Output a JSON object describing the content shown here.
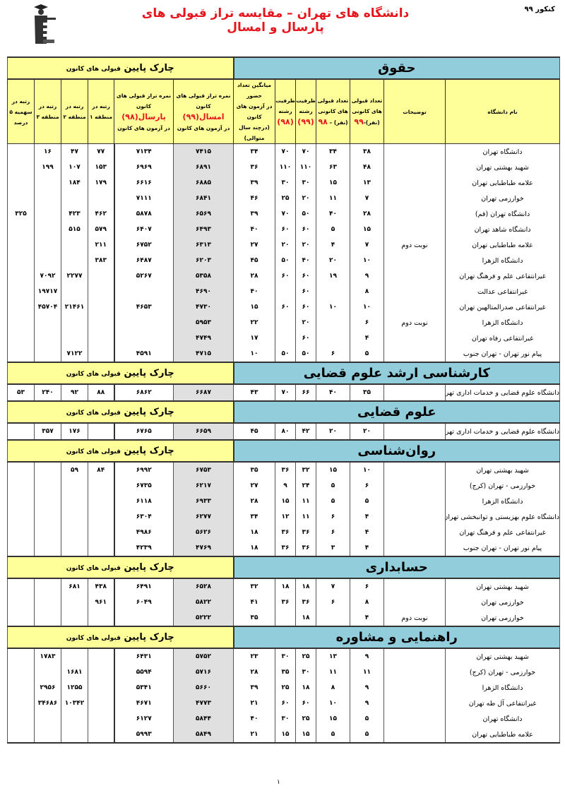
{
  "header": {
    "exam_label": "کنکور ۹۹",
    "title": "دانشگاه های تهران – مقایسه تراز قبولی های پارسال و امسال",
    "logo_text": "کانون فرهنگی آموزش"
  },
  "colors": {
    "title": "#e8141b",
    "section_bg": "#92cddc",
    "side_bg": "#ffff99",
    "score_col_bg": "#e0e0e0"
  },
  "side_label_big": "چارک پایین",
  "side_label_small": "قبولی های کانون",
  "columns": {
    "name": "نام دانشگاه",
    "notes": "توضیحات",
    "acc99": [
      "تعداد قبولی",
      "های کانونی",
      "(نفر)-",
      "۹۹"
    ],
    "acc98": [
      "تعداد قبولی",
      "های کانونی",
      "(نفر) – ",
      "۹۸"
    ],
    "cap99": [
      "ظرفیت",
      "رشته",
      "(۹۹)"
    ],
    "cap98": [
      "ظرفیت",
      "رشته",
      "(۹۸)"
    ],
    "avg": [
      "میانگین تعداد حضور",
      "در آزمون های کانون",
      "(درچند سال متوالی)"
    ],
    "score99": [
      "نمره تراز قبولی های کانون",
      "امسال(۹۹)",
      "در آزمون های کانون"
    ],
    "score98": [
      "نمره تراز قبولی های کانون",
      "پارسال(۹۸)",
      "در آزمون های کانون"
    ],
    "r1": [
      "رتبه در",
      "منطقه ۱"
    ],
    "r2": [
      "رتبه در",
      "منطقه ۲"
    ],
    "r3": [
      "رتبه در",
      "منطقه ۳"
    ],
    "quota": [
      "رتبه در",
      "سهمیه ۵",
      "درصد"
    ]
  },
  "sections": [
    {
      "title": "حقوق",
      "rows": [
        {
          "name": "دانشگاه تهران",
          "notes": "",
          "acc99": "۳۸",
          "acc98": "۳۴",
          "cap99": "۷۰",
          "cap98": "۷۰",
          "avg": "۳۴",
          "score99": "۷۴۱۵",
          "score98": "۷۱۳۴",
          "r1": "۷۷",
          "r2": "۴۷",
          "r3": "۱۶",
          "quota": ""
        },
        {
          "name": "شهید بهشتی تهران",
          "notes": "",
          "acc99": "۴۸",
          "acc98": "۶۳",
          "cap99": "۱۱۰",
          "cap98": "۱۱۰",
          "avg": "۳۶",
          "score99": "۶۸۹۱",
          "score98": "۶۹۶۹",
          "r1": "۱۵۳",
          "r2": "۱۰۷",
          "r3": "۱۹۹",
          "quota": ""
        },
        {
          "name": "علامه طباطبایی تهران",
          "notes": "",
          "acc99": "۱۳",
          "acc98": "۱۵",
          "cap99": "۳۰",
          "cap98": "۳۰",
          "avg": "۳۹",
          "score99": "۶۸۸۵",
          "score98": "۶۶۱۶",
          "r1": "۱۷۹",
          "r2": "۱۸۴",
          "r3": "",
          "quota": ""
        },
        {
          "name": "خوارزمی تهران",
          "notes": "",
          "acc99": "۷",
          "acc98": "۱۱",
          "cap99": "۲۰",
          "cap98": "۲۵",
          "avg": "۴۶",
          "score99": "۶۸۴۱",
          "score98": "۷۱۱۱",
          "r1": "",
          "r2": "",
          "r3": "",
          "quota": ""
        },
        {
          "name": "دانشگاه تهران (قم)",
          "notes": "",
          "acc99": "۲۸",
          "acc98": "۴۰",
          "cap99": "۵۰",
          "cap98": "۷۰",
          "avg": "۳۹",
          "score99": "۶۵۶۹",
          "score98": "۵۸۷۸",
          "r1": "۴۶۲",
          "r2": "۴۲۳",
          "r3": "",
          "quota": "۳۲۵"
        },
        {
          "name": "دانشگاه شاهد تهران",
          "notes": "",
          "acc99": "۱۵",
          "acc98": "۵",
          "cap99": "۶۰",
          "cap98": "۶۰",
          "avg": "۴۰",
          "score99": "۶۴۹۳",
          "score98": "۶۴۰۷",
          "r1": "۵۷۹",
          "r2": "۵۱۵",
          "r3": "",
          "quota": ""
        },
        {
          "name": "علامه طباطبایی تهران",
          "notes": "نوبت دوم",
          "acc99": "۷",
          "acc98": "۴",
          "cap99": "۲۰",
          "cap98": "۲۰",
          "avg": "۲۷",
          "score99": "۶۳۱۳",
          "score98": "۶۷۵۲",
          "r1": "۲۱۱",
          "r2": "",
          "r3": "",
          "quota": ""
        },
        {
          "name": "دانشگاه الزهرا",
          "notes": "",
          "acc99": "۱۰",
          "acc98": "۲۰",
          "cap99": "۴۰",
          "cap98": "۵۰",
          "avg": "۴۵",
          "score99": "۶۲۰۳",
          "score98": "۶۴۸۷",
          "r1": "۳۸۳",
          "r2": "",
          "r3": "",
          "quota": ""
        },
        {
          "name": "غیرانتفاعی علم و فرهنگ تهران",
          "notes": "",
          "acc99": "۹",
          "acc98": "۱۹",
          "cap99": "۶۰",
          "cap98": "۶۰",
          "avg": "۲۸",
          "score99": "۵۳۵۸",
          "score98": "۵۲۶۷",
          "r1": "",
          "r2": "۲۲۷۷",
          "r3": "۷۰۹۲",
          "quota": ""
        },
        {
          "name": "غیرانتفاعی عدالت",
          "notes": "",
          "acc99": "۸",
          "acc98": "",
          "cap99": "۶۰",
          "cap98": "",
          "avg": "۴۰",
          "score99": "۴۶۹۰",
          "score98": "",
          "r1": "",
          "r2": "",
          "r3": "۱۹۷۱۷",
          "quota": ""
        },
        {
          "name": "غیرانتفاعی صدرالمتالهین تهران",
          "notes": "",
          "acc99": "۱۰",
          "acc98": "۱۰",
          "cap99": "۶۰",
          "cap98": "۶۰",
          "avg": "۱۵",
          "score99": "۴۷۳۰",
          "score98": "۴۶۵۳",
          "r1": "",
          "r2": "۲۱۴۶۱",
          "r3": "۴۵۷۰۴",
          "quota": ""
        },
        {
          "name": "دانشگاه الزهرا",
          "notes": "نوبت دوم",
          "acc99": "۶",
          "acc98": "",
          "cap99": "۲۰",
          "cap98": "",
          "avg": "۲۲",
          "score99": "۵۹۵۳",
          "score98": "",
          "r1": "",
          "r2": "",
          "r3": "",
          "quota": ""
        },
        {
          "name": "غیرانتفاعی رفاه تهران",
          "notes": "",
          "acc99": "۴",
          "acc98": "",
          "cap99": "۶۰",
          "cap98": "",
          "avg": "۱۷",
          "score99": "۴۷۴۹",
          "score98": "",
          "r1": "",
          "r2": "",
          "r3": "",
          "quota": ""
        },
        {
          "name": "پیام نور تهران - تهران جنوب",
          "notes": "",
          "acc99": "۵",
          "acc98": "۶",
          "cap99": "۵۰",
          "cap98": "۵۰",
          "avg": "۱۰",
          "score99": "۴۷۱۵",
          "score98": "۴۵۹۱",
          "r1": "",
          "r2": "۷۱۲۲",
          "r3": "",
          "quota": ""
        }
      ]
    },
    {
      "title": "کارشناسی ارشد علوم قضایی",
      "rows": [
        {
          "name": "دانشگاه علوم قضایی و خدمات اداری تهران",
          "notes": "",
          "acc99": "۳۵",
          "acc98": "۴۰",
          "cap99": "۶۶",
          "cap98": "۷۰",
          "avg": "۴۳",
          "score99": "۶۶۸۷",
          "score98": "۶۸۶۲",
          "r1": "۸۸",
          "r2": "۹۲",
          "r3": "۲۴۰",
          "quota": "۵۳"
        }
      ]
    },
    {
      "title": "علوم قضایی",
      "rows": [
        {
          "name": "دانشگاه علوم قضایی و خدمات اداری تهران",
          "notes": "",
          "acc99": "۲۰",
          "acc98": "۲۰",
          "cap99": "۴۲",
          "cap98": "۸۰",
          "avg": "۴۵",
          "score99": "۶۶۵۹",
          "score98": "۶۷۶۵",
          "r1": "",
          "r2": "۱۷۶",
          "r3": "۳۵۷",
          "quota": ""
        }
      ]
    },
    {
      "title": "روان‌شناسی",
      "rows": [
        {
          "name": "شهید بهشتی تهران",
          "notes": "",
          "acc99": "۱۰",
          "acc98": "۱۵",
          "cap99": "۳۲",
          "cap98": "۳۶",
          "avg": "۳۵",
          "score99": "۶۷۵۳",
          "score98": "۶۹۹۲",
          "r1": "۸۴",
          "r2": "۵۹",
          "r3": "",
          "quota": ""
        },
        {
          "name": "خوارزمی - تهران (کرج)",
          "notes": "",
          "acc99": "۶",
          "acc98": "۵",
          "cap99": "۲۴",
          "cap98": "۹",
          "avg": "۲۷",
          "score99": "۶۲۱۷",
          "score98": "۶۷۳۵",
          "r1": "",
          "r2": "",
          "r3": "",
          "quota": ""
        },
        {
          "name": "دانشگاه الزهرا",
          "notes": "",
          "acc99": "۵",
          "acc98": "۵",
          "cap99": "۱۱",
          "cap98": "۱۵",
          "avg": "۲۸",
          "score99": "۶۹۳۳",
          "score98": "۶۱۱۸",
          "r1": "",
          "r2": "",
          "r3": "",
          "quota": ""
        },
        {
          "name": "دانشگاه علوم بهزیستی و توانبخشی تهران",
          "notes": "",
          "acc99": "۴",
          "acc98": "۶",
          "cap99": "۱۱",
          "cap98": "۱۲",
          "avg": "۳۴",
          "score99": "۶۲۷۷",
          "score98": "۶۳۰۴",
          "r1": "",
          "r2": "",
          "r3": "",
          "quota": ""
        },
        {
          "name": "غیرانتفاعی علم و فرهنگ تهران",
          "notes": "",
          "acc99": "۴",
          "acc98": "۶",
          "cap99": "۳۶",
          "cap98": "۳۶",
          "avg": "۱۸",
          "score99": "۵۶۲۶",
          "score98": "۴۹۸۶",
          "r1": "",
          "r2": "",
          "r3": "",
          "quota": ""
        },
        {
          "name": "پیام نور تهران - تهران جنوب",
          "notes": "",
          "acc99": "۴",
          "acc98": "۳",
          "cap99": "۳۶",
          "cap98": "۳۶",
          "avg": "۱۸",
          "score99": "۴۷۶۹",
          "score98": "۴۲۳۹",
          "r1": "",
          "r2": "",
          "r3": "",
          "quota": ""
        }
      ]
    },
    {
      "title": "حسابداری",
      "rows": [
        {
          "name": "شهید بهشتی تهران",
          "notes": "",
          "acc99": "۶",
          "acc98": "۷",
          "cap99": "۱۸",
          "cap98": "۱۸",
          "avg": "۳۲",
          "score99": "۶۵۲۸",
          "score98": "۶۴۹۱",
          "r1": "۴۳۸",
          "r2": "۶۸۱",
          "r3": "",
          "quota": ""
        },
        {
          "name": "خوارزمی تهران",
          "notes": "",
          "acc99": "۸",
          "acc98": "۶",
          "cap99": "۳۶",
          "cap98": "۳۶",
          "avg": "۴۱",
          "score99": "۵۸۲۲",
          "score98": "۶۰۴۹",
          "r1": "۹۶۱",
          "r2": "",
          "r3": "",
          "quota": ""
        },
        {
          "name": "خوارزمی تهران",
          "notes": "نوبت دوم",
          "acc99": "۴",
          "acc98": "",
          "cap99": "۱۸",
          "cap98": "",
          "avg": "۳۵",
          "score99": "۵۲۲۲",
          "score98": "",
          "r1": "",
          "r2": "",
          "r3": "",
          "quota": ""
        }
      ]
    },
    {
      "title": "راهنمایی و مشاوره",
      "rows": [
        {
          "name": "شهید بهشتی تهران",
          "notes": "",
          "acc99": "۹",
          "acc98": "۱۳",
          "cap99": "۲۵",
          "cap98": "۳۰",
          "avg": "۲۳",
          "score99": "۵۷۵۲",
          "score98": "۶۴۳۱",
          "r1": "",
          "r2": "",
          "r3": "۱۷۸۳",
          "quota": ""
        },
        {
          "name": "خوارزمی - تهران (کرج)",
          "notes": "",
          "acc99": "۱۱",
          "acc98": "۱۱",
          "cap99": "۳۰",
          "cap98": "۳۵",
          "avg": "۲۸",
          "score99": "۵۷۱۶",
          "score98": "۵۵۹۴",
          "r1": "",
          "r2": "۱۶۸۱",
          "r3": "",
          "quota": ""
        },
        {
          "name": "دانشگاه الزهرا",
          "notes": "",
          "acc99": "۹",
          "acc98": "۸",
          "cap99": "۱۸",
          "cap98": "۲۵",
          "avg": "۳۹",
          "score99": "۵۶۶۰",
          "score98": "۵۳۴۱",
          "r1": "",
          "r2": "۱۲۵۵",
          "r3": "۲۹۵۶",
          "quota": ""
        },
        {
          "name": "غیرانتفاعی آل طه تهران",
          "notes": "",
          "acc99": "۹",
          "acc98": "۱۰",
          "cap99": "۶۰",
          "cap98": "۶۰",
          "avg": "۲۱",
          "score99": "۴۷۷۳",
          "score98": "۴۶۷۱",
          "r1": "",
          "r2": "۱۰۳۴۲",
          "r3": "۳۴۶۸۶",
          "quota": ""
        },
        {
          "name": "دانشگاه تهران",
          "notes": "",
          "acc99": "۵",
          "acc98": "۱۵",
          "cap99": "۲۵",
          "cap98": "۳۰",
          "avg": "۴۰",
          "score99": "۵۸۴۴",
          "score98": "۶۱۲۷",
          "r1": "",
          "r2": "",
          "r3": "",
          "quota": ""
        },
        {
          "name": "علامه طباطبایی تهران",
          "notes": "",
          "acc99": "۵",
          "acc98": "۵",
          "cap99": "۱۵",
          "cap98": "۱۵",
          "avg": "۲۱",
          "score99": "۵۸۴۹",
          "score98": "۵۹۹۳",
          "r1": "",
          "r2": "",
          "r3": "",
          "quota": ""
        }
      ]
    }
  ],
  "footer": {
    "page_number": "۱"
  }
}
